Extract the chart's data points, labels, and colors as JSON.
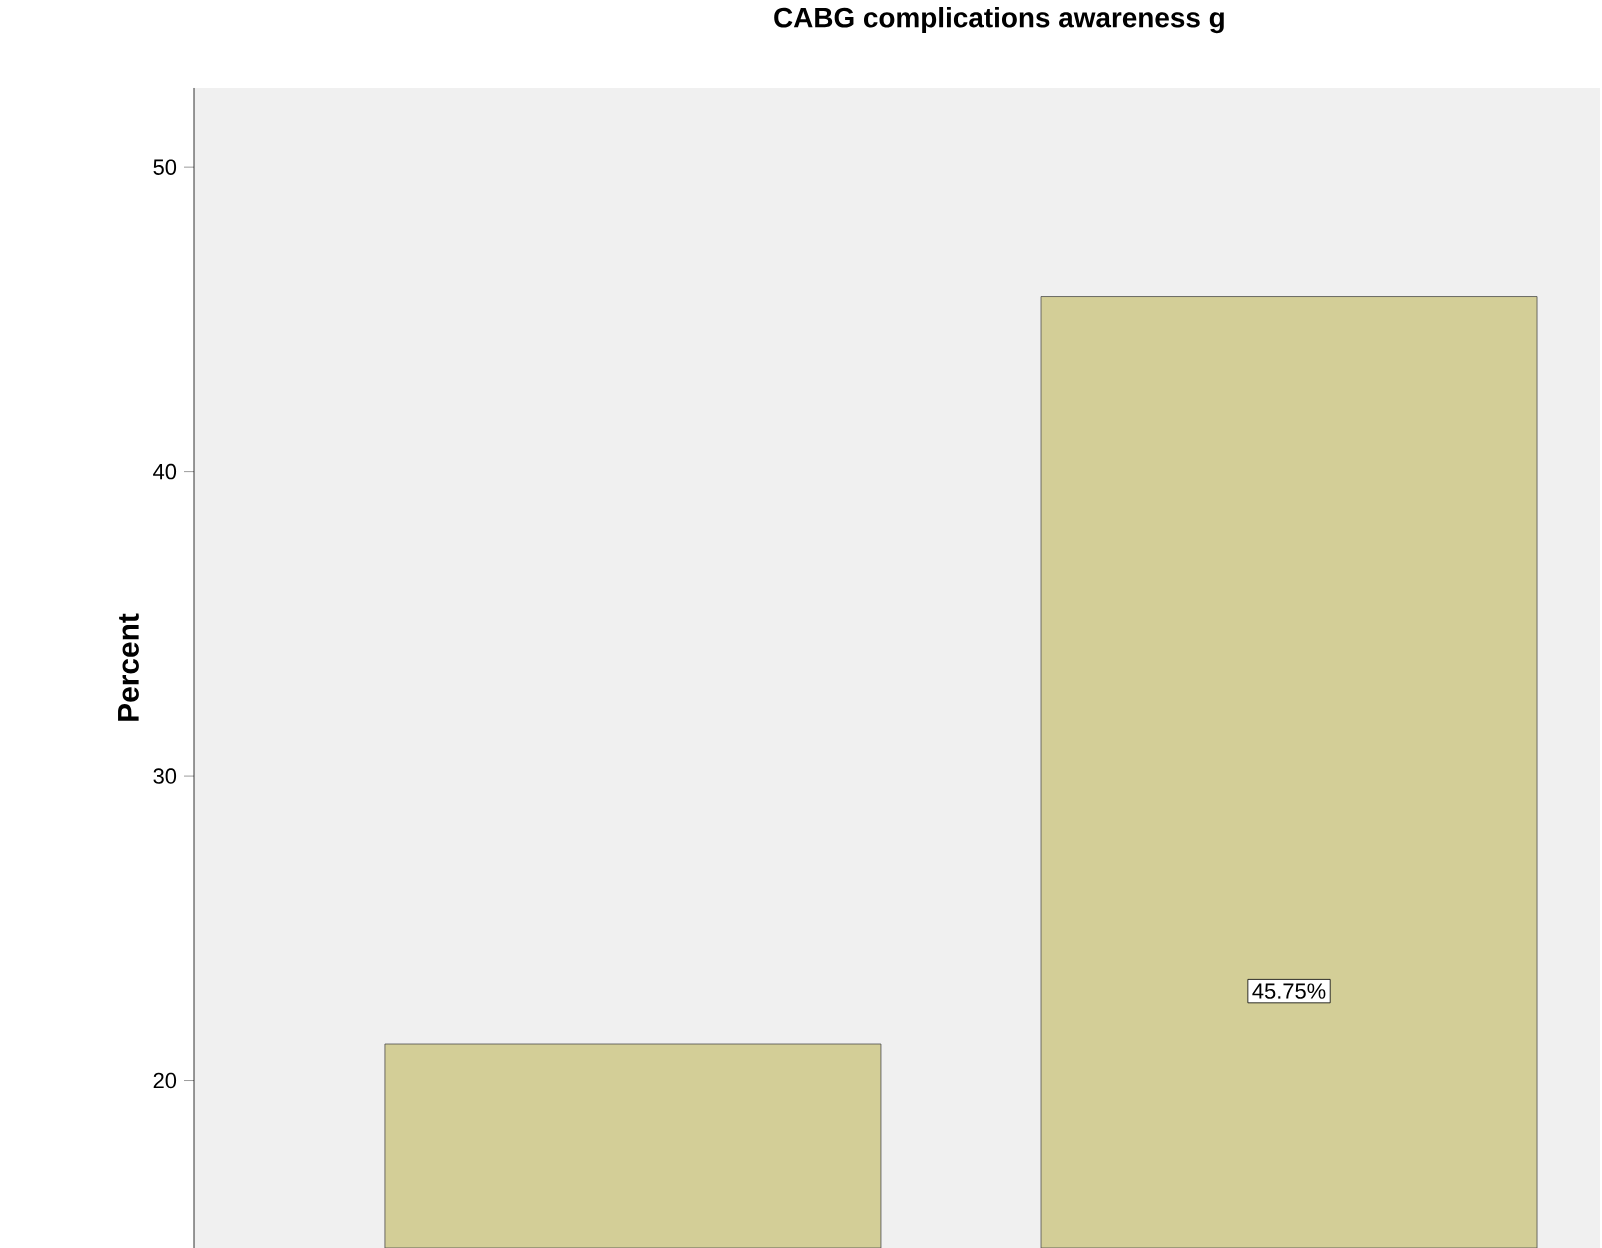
{
  "chart_data": {
    "type": "bar",
    "title": "CABG complications awareness g",
    "ylabel": "Percent",
    "categories": [
      null,
      null
    ],
    "values": [
      21.2,
      45.75
    ],
    "value_labels": [
      null,
      "45.75%"
    ],
    "color": "#d3ce97",
    "ylim": [
      14.5,
      52.6
    ],
    "yticks": [
      20,
      30,
      40,
      50
    ]
  }
}
